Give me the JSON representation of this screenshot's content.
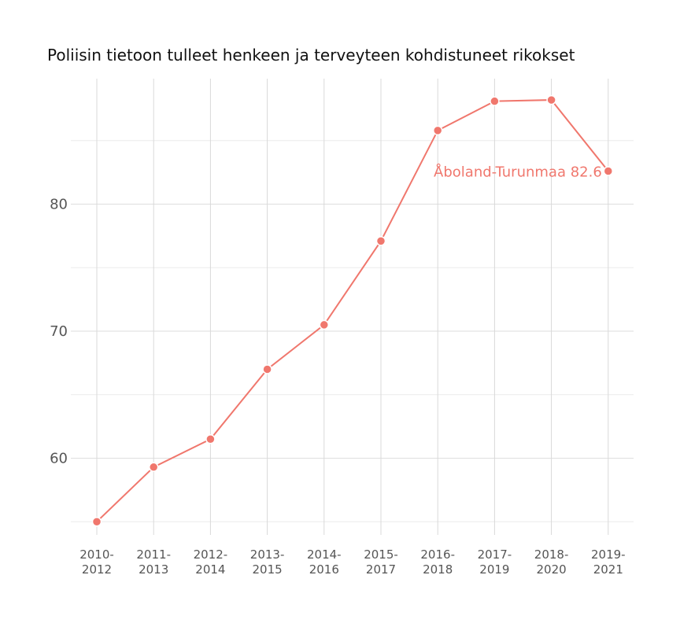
{
  "chart_data": {
    "type": "line",
    "title": "Poliisin tietoon tulleet henkeen ja terveyteen kohdistuneet rikokset",
    "xlabel": "",
    "ylabel": "",
    "categories": [
      "2010-2012",
      "2011-2013",
      "2012-2014",
      "2013-2015",
      "2014-2016",
      "2015-2017",
      "2016-2018",
      "2017-2019",
      "2018-2020",
      "2019-2021"
    ],
    "series": [
      {
        "name": "Åboland-Turunmaa",
        "color": "#f0776d",
        "values": [
          55.0,
          59.3,
          61.5,
          67.0,
          70.5,
          77.1,
          85.8,
          88.1,
          88.2,
          82.6
        ]
      }
    ],
    "annotation": {
      "text": "Åboland-Turunmaa 82.6",
      "series_index": 0,
      "point_index": 9
    },
    "yticks": [
      60,
      70,
      80
    ],
    "ylim": [
      53.5,
      90.5
    ],
    "grid": true,
    "legend": "none"
  }
}
